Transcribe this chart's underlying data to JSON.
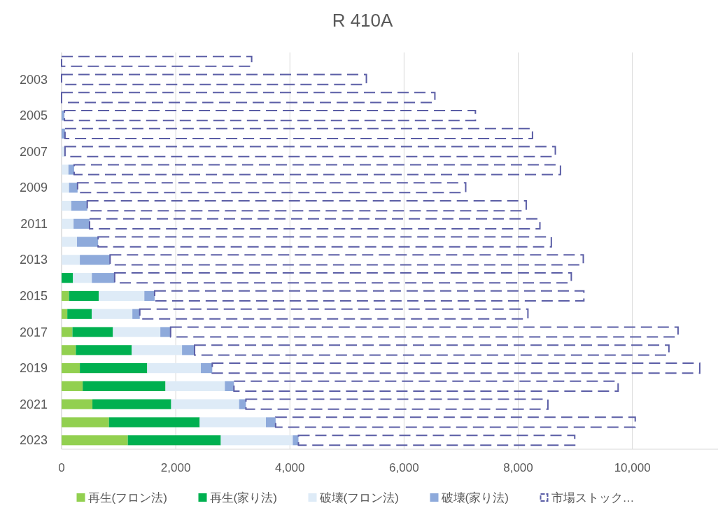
{
  "chart_data": {
    "type": "bar",
    "orientation": "horizontal",
    "stacked": true,
    "title": "R 410A",
    "categories": [
      null,
      "2003",
      null,
      "2005",
      null,
      "2007",
      null,
      "2009",
      null,
      "2011",
      null,
      "2013",
      null,
      "2015",
      null,
      "2017",
      null,
      "2019",
      null,
      "2021",
      null,
      "2023"
    ],
    "series": [
      {
        "name": "再生(フロン法)",
        "color": "#92d050",
        "values": [
          0,
          0,
          0,
          0,
          0,
          0,
          0,
          0,
          0,
          0,
          0,
          0,
          0,
          130,
          100,
          190,
          250,
          320,
          370,
          540,
          830,
          1160
        ]
      },
      {
        "name": "再生(家り法)",
        "color": "#00b050",
        "values": [
          0,
          0,
          0,
          0,
          0,
          0,
          0,
          0,
          0,
          0,
          0,
          0,
          200,
          520,
          430,
          710,
          980,
          1180,
          1450,
          1380,
          1590,
          1630
        ]
      },
      {
        "name": "破壊(フロン法)",
        "color": "#deebf7",
        "values": [
          0,
          0,
          0,
          0,
          0,
          60,
          120,
          130,
          170,
          210,
          270,
          320,
          330,
          800,
          710,
          830,
          880,
          940,
          1040,
          1190,
          1160,
          1260
        ]
      },
      {
        "name": "破壊(家り法)",
        "color": "#8eaadb",
        "values": [
          0,
          0,
          0,
          50,
          60,
          0,
          100,
          150,
          280,
          280,
          370,
          530,
          400,
          180,
          130,
          180,
          220,
          200,
          160,
          120,
          170,
          100
        ]
      },
      {
        "name": "市場ストック…",
        "color": "#5b5ea6",
        "line_style": "dashed",
        "values": [
          3330,
          5340,
          6540,
          7200,
          8190,
          8590,
          8520,
          6800,
          7690,
          7890,
          7940,
          8290,
          8000,
          7520,
          6800,
          8890,
          8310,
          8540,
          6730,
          5290,
          6300,
          4840
        ]
      }
    ],
    "xlim": [
      0,
      11500
    ],
    "xticks": [
      0,
      {
        "value": 2000,
        "label": "2,000"
      },
      {
        "value": 4000,
        "label": "4,000"
      },
      {
        "value": 6000,
        "label": "6,000"
      },
      {
        "value": 8000,
        "label": "8,000"
      },
      {
        "value": 10000,
        "label": "10,000"
      }
    ],
    "grid": "x",
    "legend": "bottom"
  }
}
